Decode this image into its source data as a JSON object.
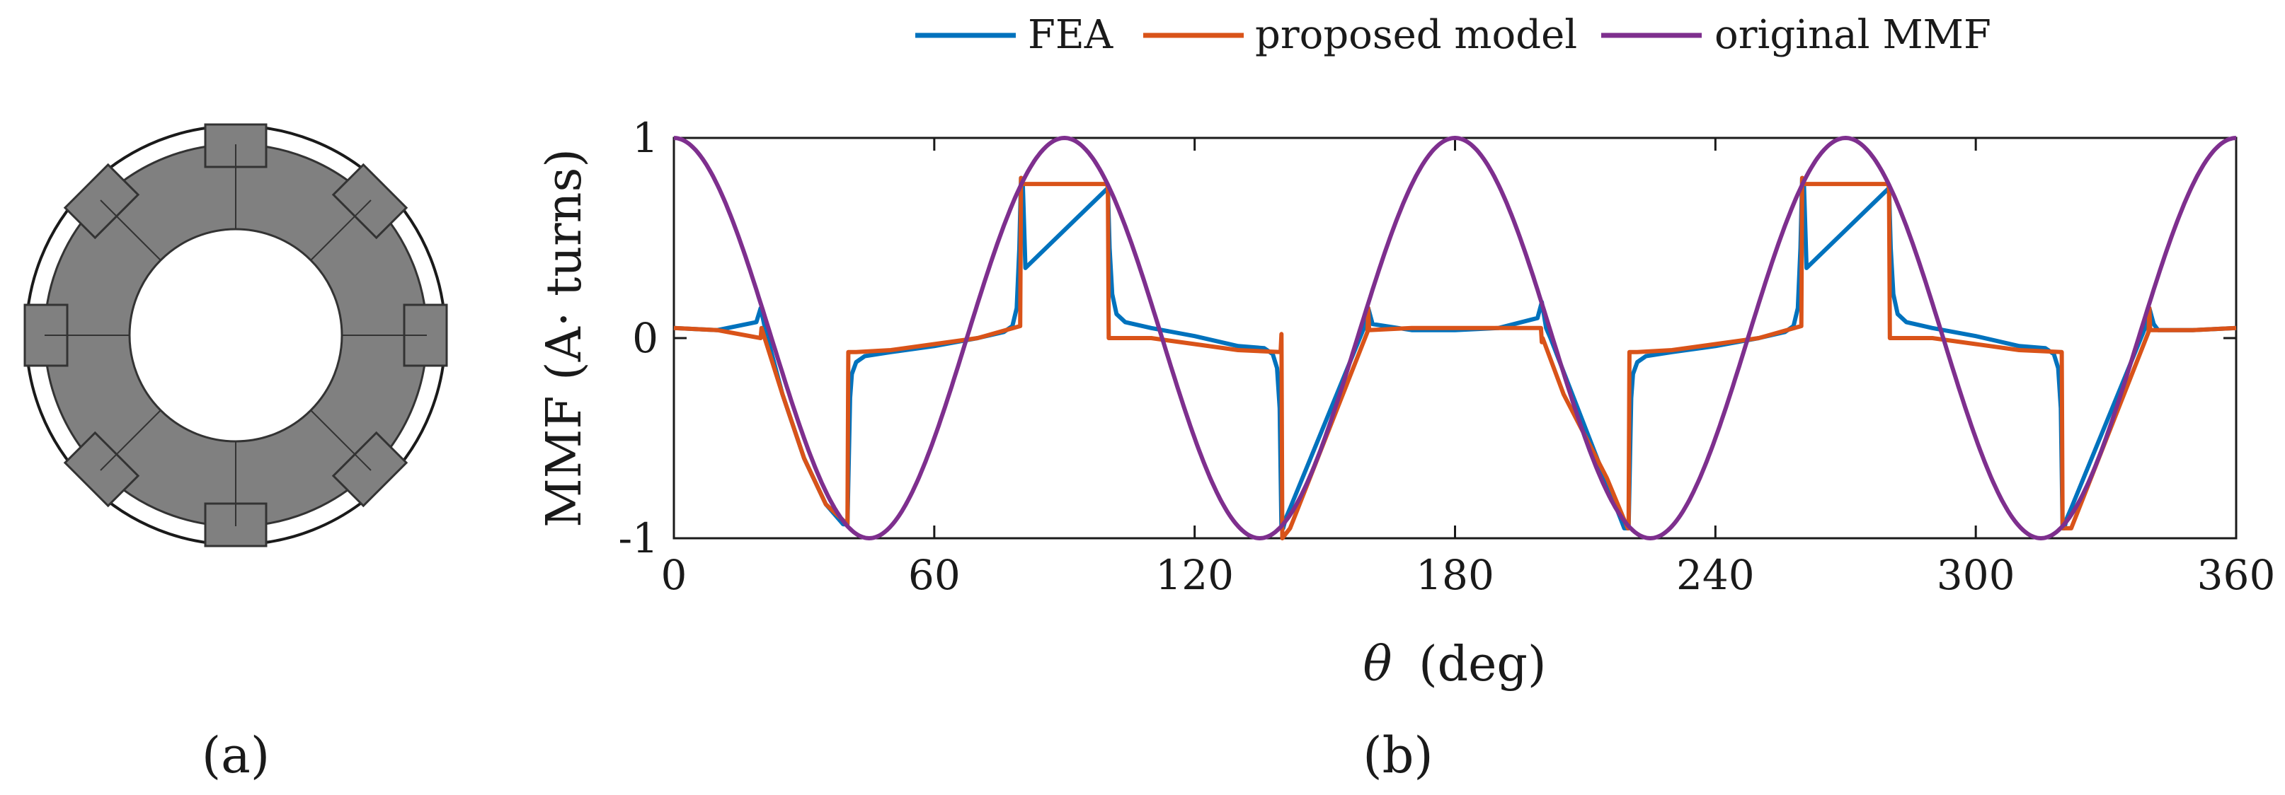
{
  "figure": {
    "panel_a_label": "(a)",
    "panel_b_label": "(b)",
    "panel_a_description_colors": {
      "ring": "#808080",
      "slot": "#ffffff",
      "outline": "#1a1a1a"
    }
  },
  "chart_data": {
    "type": "line",
    "xlabel_symbol": "θ",
    "xlabel_unit": "(deg)",
    "ylabel": "MMF (A· turns)",
    "xlim": [
      0,
      360
    ],
    "ylim": [
      -1,
      1
    ],
    "x_ticks": [
      0,
      60,
      120,
      180,
      240,
      300,
      360
    ],
    "x_tick_labels": [
      "0",
      "60",
      "120",
      "180",
      "240",
      "300",
      "360"
    ],
    "y_ticks": [
      -1,
      0,
      1
    ],
    "y_tick_labels": [
      "-1",
      "0",
      "1"
    ],
    "legend_position": "top-center",
    "series": [
      {
        "name": "FEA",
        "color": "#0072BD",
        "x": [
          0,
          10,
          19,
          20,
          21,
          25,
          30,
          35,
          39,
          40,
          40.6,
          41,
          42,
          44,
          50,
          60,
          70,
          76,
          78,
          79,
          79.6,
          80,
          80.4,
          81,
          100,
          100.4,
          101,
          102,
          104,
          110,
          120,
          130,
          136,
          138,
          139,
          139.6,
          140,
          140.4,
          141,
          142,
          159,
          160,
          161,
          170,
          180,
          190,
          199,
          200,
          201,
          202,
          219,
          220,
          220.6,
          221,
          222,
          224,
          230,
          240,
          250,
          256,
          258,
          259,
          259.6,
          260,
          260.4,
          261,
          280,
          280.4,
          281,
          282,
          284,
          290,
          300,
          310,
          316,
          318,
          319,
          319.6,
          320,
          320.4,
          321,
          322,
          339,
          340,
          341,
          342,
          350,
          360
        ],
        "y": [
          0.05,
          0.04,
          0.08,
          0.15,
          0.05,
          -0.28,
          -0.6,
          -0.83,
          -0.93,
          -0.93,
          -0.3,
          -0.18,
          -0.12,
          -0.09,
          -0.07,
          -0.04,
          0.0,
          0.03,
          0.06,
          0.15,
          0.45,
          0.8,
          0.77,
          0.35,
          0.75,
          0.45,
          0.22,
          0.12,
          0.08,
          0.05,
          0.01,
          -0.04,
          -0.05,
          -0.08,
          -0.15,
          -0.35,
          -0.95,
          -0.95,
          -0.9,
          -0.85,
          0.05,
          0.15,
          0.07,
          0.04,
          0.04,
          0.05,
          0.1,
          0.18,
          0.05,
          0.0,
          -0.95,
          -0.95,
          -0.3,
          -0.18,
          -0.12,
          -0.09,
          -0.07,
          -0.04,
          0.0,
          0.03,
          0.06,
          0.15,
          0.45,
          0.8,
          0.77,
          0.35,
          0.75,
          0.45,
          0.22,
          0.12,
          0.08,
          0.05,
          0.01,
          -0.04,
          -0.05,
          -0.08,
          -0.15,
          -0.35,
          -0.95,
          -0.95,
          -0.9,
          -0.85,
          0.05,
          0.15,
          0.07,
          0.04,
          0.04,
          0.05
        ]
      },
      {
        "name": "proposed model",
        "color": "#D95319",
        "x": [
          0,
          10,
          20,
          20.2,
          25,
          30,
          35,
          40,
          40.2,
          42,
          50,
          60,
          70,
          79.8,
          80,
          80.2,
          99.8,
          100,
          100.2,
          110,
          120,
          130,
          139.8,
          140,
          140.2,
          142,
          159.8,
          160,
          160.2,
          170,
          180,
          190,
          199.8,
          200,
          200.2,
          205,
          215,
          219.8,
          220,
          220.2,
          222,
          230,
          240,
          250,
          259.8,
          260,
          260.2,
          279.8,
          280,
          280.2,
          290,
          300,
          310,
          319.8,
          320,
          320.2,
          322,
          339.8,
          340,
          340.2,
          350,
          360
        ],
        "y": [
          0.05,
          0.04,
          0.0,
          0.05,
          -0.28,
          -0.6,
          -0.83,
          -0.93,
          -0.07,
          -0.07,
          -0.06,
          -0.03,
          0.0,
          0.06,
          0.8,
          0.77,
          0.77,
          0.75,
          0.0,
          0.0,
          -0.03,
          -0.06,
          -0.07,
          0.02,
          -1.0,
          -0.95,
          0.03,
          0.15,
          0.04,
          0.05,
          0.05,
          0.05,
          0.05,
          -0.02,
          0.0,
          -0.28,
          -0.7,
          -0.95,
          -0.95,
          -0.07,
          -0.07,
          -0.06,
          -0.03,
          0.0,
          0.06,
          0.8,
          0.77,
          0.77,
          0.75,
          0.0,
          0.0,
          -0.03,
          -0.06,
          -0.07,
          -0.95,
          -0.95,
          -0.95,
          0.03,
          0.15,
          0.04,
          0.04,
          0.05
        ]
      },
      {
        "name": "original MMF",
        "color": "#7E2F8E",
        "function": "cos(4θ)",
        "x": [
          0,
          7.5,
          15,
          22.5,
          30,
          37.5,
          45,
          52.5,
          60,
          67.5,
          75,
          82.5,
          90,
          97.5,
          105,
          112.5,
          120,
          127.5,
          135,
          142.5,
          150,
          157.5,
          165,
          172.5,
          180,
          187.5,
          195,
          202.5,
          210,
          217.5,
          225,
          232.5,
          240,
          247.5,
          255,
          262.5,
          270,
          277.5,
          285,
          292.5,
          300,
          307.5,
          315,
          322.5,
          330,
          337.5,
          345,
          352.5,
          360
        ],
        "y": [
          1,
          0.866,
          0.5,
          0,
          -0.5,
          -0.866,
          -1,
          -0.866,
          -0.5,
          0,
          0.5,
          0.866,
          1,
          0.866,
          0.5,
          0,
          -0.5,
          -0.866,
          -1,
          -0.866,
          -0.5,
          0,
          0.5,
          0.866,
          1,
          0.866,
          0.5,
          0,
          -0.5,
          -0.866,
          -1,
          -0.866,
          -0.5,
          0,
          0.5,
          0.866,
          1,
          0.866,
          0.5,
          0,
          -0.5,
          -0.866,
          -1,
          -0.866,
          -0.5,
          0,
          0.5,
          0.866,
          1
        ]
      }
    ]
  }
}
